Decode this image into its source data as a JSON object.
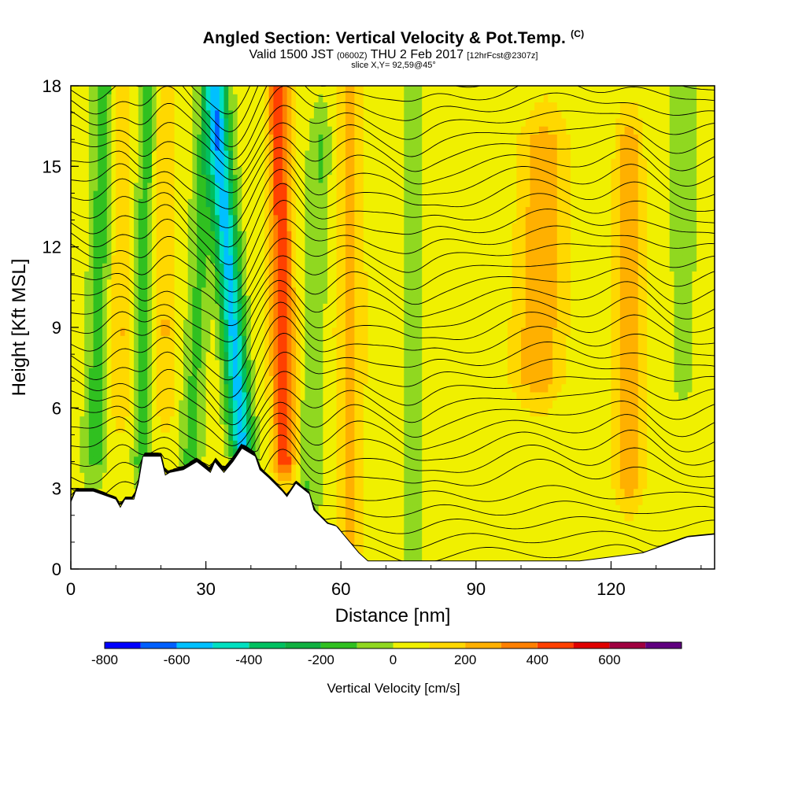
{
  "title": {
    "main": "Angled Section: Vertical Velocity & Pot.Temp.",
    "main_suffix": "(C)",
    "valid_a": "Valid 1500 JST",
    "valid_b": "(0600Z)",
    "valid_c": "THU 2 Feb 2017",
    "valid_d": "[12hrFcst@2307z]",
    "slice": "slice X,Y= 92,59@45°"
  },
  "chart_data": {
    "type": "heatmap",
    "xlabel": "Distance [nm]",
    "ylabel": "Height [Kft MSL]",
    "xlim": [
      0,
      143
    ],
    "ylim": [
      0,
      18
    ],
    "x_ticks": [
      0,
      30,
      60,
      90,
      120
    ],
    "y_ticks": [
      0,
      3,
      6,
      9,
      12,
      15,
      18
    ],
    "colorbar": {
      "title": "Vertical Velocity [cm/s]",
      "tick_values": [
        -800,
        -600,
        -400,
        -200,
        0,
        200,
        400,
        600
      ],
      "tick_labels": [
        "-800",
        "-600",
        "-400",
        "-200",
        "0",
        "200",
        "400",
        "600"
      ],
      "bounds": [
        -800,
        -700,
        -600,
        -500,
        -400,
        -300,
        -200,
        -100,
        0,
        100,
        200,
        300,
        400,
        500,
        600,
        700
      ],
      "colors": [
        "#0000ff",
        "#0060ff",
        "#00c0ff",
        "#00e0c0",
        "#00c060",
        "#10b040",
        "#30c020",
        "#90d820",
        "#f0f000",
        "#ffd800",
        "#ffb000",
        "#ff8000",
        "#ff4000",
        "#e00000",
        "#a00040",
        "#600080"
      ]
    },
    "velocity_features": [
      {
        "x": 6,
        "w": 2.5,
        "top": 18,
        "bottom": 4,
        "value": -200,
        "tilt": 0.18
      },
      {
        "x": 11,
        "w": 2.2,
        "top": 18,
        "bottom": 6,
        "value": 150,
        "tilt": 0.0
      },
      {
        "x": 16,
        "w": 1.8,
        "top": 18,
        "bottom": 4,
        "value": -200,
        "tilt": 0.1
      },
      {
        "x": 21,
        "w": 2.0,
        "top": 18,
        "bottom": 6,
        "value": 150,
        "tilt": 0.0
      },
      {
        "x": 28,
        "w": 2.5,
        "top": 16,
        "bottom": 4,
        "value": -180,
        "tilt": 0.3
      },
      {
        "x": 36,
        "w": 2.6,
        "top": 18,
        "bottom": 4.5,
        "value": -600,
        "tilt": -0.45
      },
      {
        "x": 47,
        "w": 2.6,
        "top": 18,
        "bottom": 4,
        "value": 420,
        "tilt": -0.1
      },
      {
        "x": 54,
        "w": 2.5,
        "top": 16,
        "bottom": 2,
        "value": -150,
        "tilt": 0.2
      },
      {
        "x": 62,
        "w": 3.0,
        "top": 18,
        "bottom": 1,
        "value": 180,
        "tilt": 0.0
      },
      {
        "x": 76,
        "w": 2.0,
        "top": 18,
        "bottom": 0.5,
        "value": -120,
        "tilt": 0.0
      },
      {
        "x": 104,
        "w": 5.0,
        "top": 16,
        "bottom": 7,
        "value": 230,
        "tilt": 0.15
      },
      {
        "x": 124,
        "w": 3.0,
        "top": 16,
        "bottom": 3,
        "value": 230,
        "tilt": 0.0
      },
      {
        "x": 136,
        "w": 2.8,
        "top": 18,
        "bottom": 7,
        "value": -120,
        "tilt": 0.0
      }
    ],
    "theta_contour_levels": 34,
    "terrain_nm_kft": [
      [
        0,
        2.5
      ],
      [
        1,
        2.9
      ],
      [
        5,
        2.9
      ],
      [
        10,
        2.6
      ],
      [
        11,
        2.3
      ],
      [
        12,
        2.6
      ],
      [
        14,
        2.6
      ],
      [
        15,
        3.2
      ],
      [
        16,
        4.2
      ],
      [
        20,
        4.2
      ],
      [
        21,
        3.5
      ],
      [
        22,
        3.6
      ],
      [
        25,
        3.7
      ],
      [
        28,
        4.0
      ],
      [
        31,
        3.6
      ],
      [
        32,
        4.0
      ],
      [
        34,
        3.6
      ],
      [
        36,
        4.0
      ],
      [
        38,
        4.5
      ],
      [
        41,
        4.2
      ],
      [
        42,
        3.7
      ],
      [
        44,
        3.4
      ],
      [
        47,
        2.9
      ],
      [
        48,
        2.7
      ],
      [
        50,
        3.2
      ],
      [
        53,
        2.8
      ],
      [
        54,
        2.2
      ],
      [
        57,
        1.7
      ],
      [
        59,
        1.6
      ],
      [
        62,
        1.0
      ],
      [
        64,
        0.6
      ],
      [
        66,
        0.3
      ],
      [
        68,
        0.3
      ],
      [
        103,
        0.3
      ],
      [
        113,
        0.3
      ],
      [
        127,
        0.6
      ],
      [
        137,
        1.2
      ],
      [
        143,
        1.3
      ]
    ]
  }
}
